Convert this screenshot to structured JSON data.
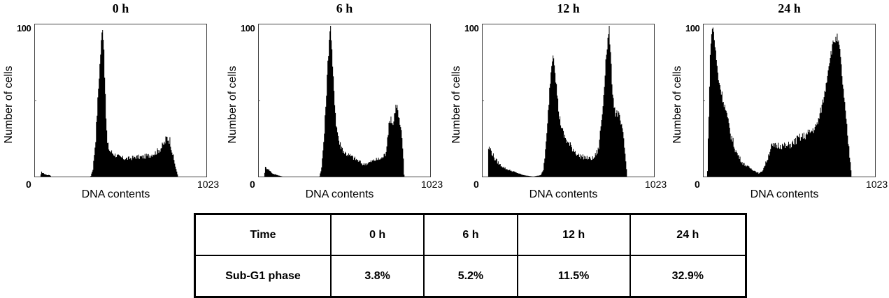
{
  "axes": {
    "ylabel": "Number of cells",
    "xlabel": "DNA contents",
    "y_top_tick": "100",
    "x_min_tick": "0",
    "x_max_tick": "1023"
  },
  "panels": [
    {
      "title": "0 h"
    },
    {
      "title": "6 h"
    },
    {
      "title": "12 h"
    },
    {
      "title": "24 h"
    }
  ],
  "table": {
    "header": [
      "Time",
      "0 h",
      "6 h",
      "12 h",
      "24 h"
    ],
    "rows": [
      [
        "Sub-G1 phase",
        "3.8%",
        "5.2%",
        "11.5%",
        "32.9%"
      ]
    ]
  },
  "colors": {
    "histogram_fill": "#000000",
    "frame": "#444444",
    "background": "#ffffff"
  },
  "chart_data": [
    {
      "type": "area",
      "title": "0 h",
      "xlabel": "DNA contents",
      "ylabel": "Number of cells",
      "xlim": [
        0,
        1023
      ],
      "ylim": [
        0,
        100
      ],
      "x": [
        30,
        37,
        50,
        70,
        87,
        95,
        330,
        344,
        360,
        380,
        395,
        402,
        410,
        420,
        430,
        445,
        470,
        500,
        530,
        560,
        600,
        640,
        680,
        720,
        750,
        770,
        785,
        795,
        805,
        815,
        830,
        845,
        853
      ],
      "values": [
        0,
        3,
        2,
        1,
        1,
        0,
        0,
        5,
        25,
        65,
        92,
        100,
        85,
        45,
        22,
        17,
        15,
        13,
        12,
        12,
        13,
        13,
        14,
        16,
        19,
        22,
        26,
        25,
        24,
        18,
        10,
        3,
        0
      ]
    },
    {
      "type": "area",
      "title": "6 h",
      "xlabel": "DNA contents",
      "ylabel": "Number of cells",
      "xlim": [
        0,
        1023
      ],
      "ylim": [
        0,
        100
      ],
      "x": [
        30,
        37,
        55,
        80,
        108,
        140,
        360,
        373,
        390,
        410,
        422,
        427,
        440,
        460,
        480,
        510,
        540,
        570,
        600,
        620,
        650,
        690,
        730,
        755,
        770,
        785,
        800,
        812,
        822,
        835,
        850,
        862,
        866
      ],
      "values": [
        0,
        6,
        5,
        2,
        1,
        0,
        0,
        6,
        30,
        75,
        98,
        100,
        70,
        35,
        22,
        16,
        14,
        12,
        10,
        8,
        9,
        11,
        12,
        15,
        30,
        40,
        34,
        45,
        48,
        38,
        28,
        12,
        0
      ]
    },
    {
      "type": "area",
      "title": "12 h",
      "xlabel": "DNA contents",
      "ylabel": "Number of cells",
      "xlim": [
        0,
        1023
      ],
      "ylim": [
        0,
        100
      ],
      "x": [
        30,
        33,
        45,
        70,
        100,
        140,
        190,
        240,
        300,
        345,
        360,
        380,
        400,
        415,
        422,
        435,
        455,
        480,
        510,
        540,
        570,
        600,
        630,
        660,
        690,
        715,
        735,
        748,
        754,
        762,
        775,
        790,
        805,
        820,
        840,
        855,
        861
      ],
      "values": [
        0,
        19,
        18,
        12,
        8,
        5,
        3,
        1,
        0,
        1,
        4,
        25,
        62,
        80,
        82,
        65,
        40,
        28,
        22,
        18,
        14,
        13,
        12,
        12,
        18,
        45,
        80,
        93,
        100,
        80,
        55,
        42,
        42,
        37,
        25,
        8,
        0
      ]
    },
    {
      "type": "area",
      "title": "24 h",
      "xlabel": "DNA contents",
      "ylabel": "Number of cells",
      "xlim": [
        0,
        1023
      ],
      "ylim": [
        0,
        100
      ],
      "x": [
        20,
        25,
        40,
        54,
        65,
        85,
        110,
        130,
        160,
        190,
        230,
        270,
        300,
        330,
        350,
        380,
        400,
        420,
        450,
        490,
        530,
        560,
        600,
        640,
        670,
        690,
        720,
        750,
        775,
        795,
        810,
        830,
        855,
        875,
        882
      ],
      "values": [
        0,
        25,
        90,
        100,
        88,
        66,
        53,
        44,
        28,
        17,
        9,
        6,
        4,
        2,
        4,
        12,
        20,
        20,
        21,
        20,
        22,
        25,
        27,
        30,
        33,
        40,
        55,
        78,
        90,
        92,
        85,
        60,
        30,
        8,
        0
      ]
    }
  ]
}
